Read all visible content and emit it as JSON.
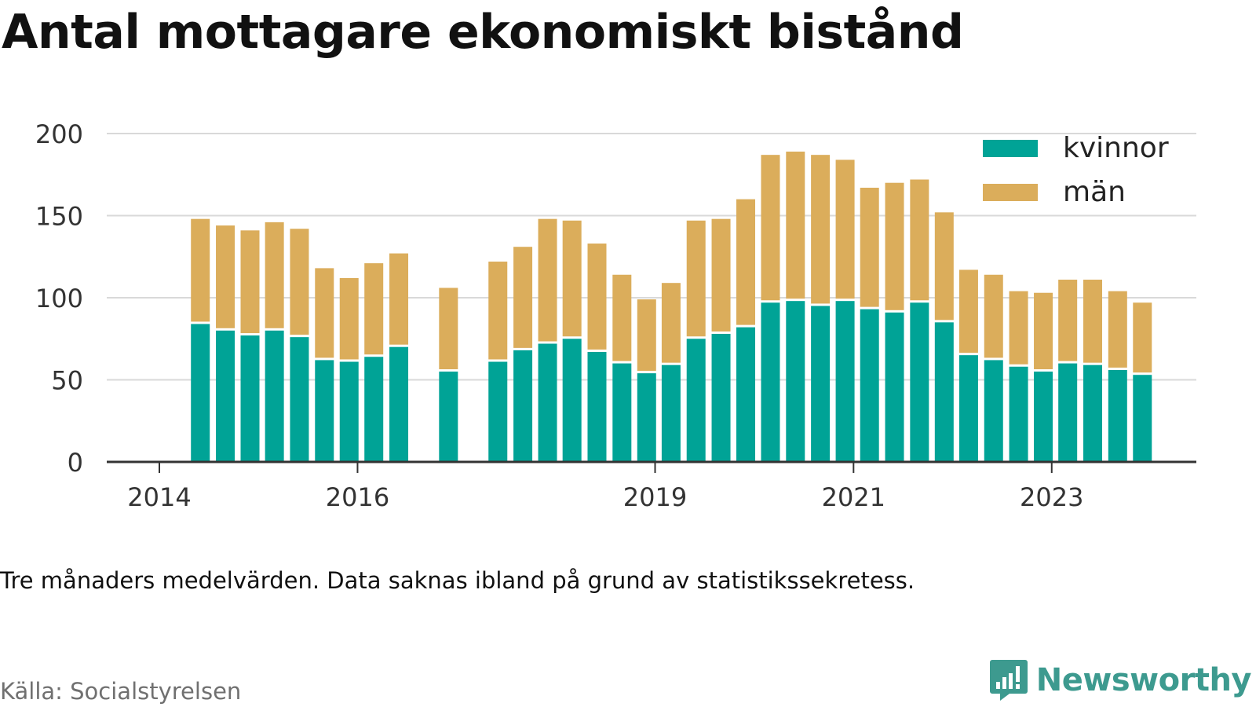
{
  "header": {
    "title": "Antal mottagare ekonomiskt bistånd"
  },
  "footer": {
    "note": "Tre månaders medelvärden. Data saknas ibland på grund av statistikssekretess.",
    "source": "Källa: Socialstyrelsen",
    "brand": "Newsworthy",
    "brand_icon": "newsworthy-chart-icon"
  },
  "colors": {
    "kvinnor": "#00a396",
    "man": "#dbad5b",
    "grid": "#d9d9d9",
    "axis": "#333333"
  },
  "chart_data": {
    "type": "bar",
    "stacked": true,
    "title": "Antal mottagare ekonomiskt bistånd",
    "xlabel": "",
    "ylabel": "",
    "ylim": [
      0,
      200
    ],
    "yticks": [
      0,
      50,
      100,
      150,
      200
    ],
    "xticks": [
      "2014",
      "2016",
      "2019",
      "2021",
      "2023"
    ],
    "grid": true,
    "legend_position": "top-right",
    "x": [
      "2014-06",
      "2014-09",
      "2014-12",
      "2015-03",
      "2015-06",
      "2015-09",
      "2015-12",
      "2016-03",
      "2016-06",
      "2016-12",
      "2017-06",
      "2017-09",
      "2017-12",
      "2018-03",
      "2018-06",
      "2018-09",
      "2018-12",
      "2019-03",
      "2019-06",
      "2019-09",
      "2019-12",
      "2020-03",
      "2020-06",
      "2020-09",
      "2020-12",
      "2021-03",
      "2021-06",
      "2021-09",
      "2021-12",
      "2022-03",
      "2022-06",
      "2022-09",
      "2022-12",
      "2023-03",
      "2023-06",
      "2023-09",
      "2023-12"
    ],
    "series": [
      {
        "name": "kvinnor",
        "values": [
          84,
          80,
          77,
          80,
          76,
          62,
          61,
          64,
          70,
          55,
          61,
          68,
          72,
          75,
          67,
          60,
          54,
          59,
          75,
          78,
          82,
          97,
          98,
          95,
          98,
          93,
          91,
          97,
          85,
          65,
          62,
          58,
          55,
          60,
          59,
          56,
          53
        ]
      },
      {
        "name": "män",
        "values": [
          64,
          64,
          64,
          66,
          66,
          56,
          51,
          57,
          57,
          51,
          61,
          63,
          76,
          72,
          66,
          54,
          45,
          50,
          72,
          70,
          78,
          90,
          91,
          92,
          86,
          74,
          79,
          75,
          67,
          52,
          52,
          46,
          48,
          51,
          52,
          48,
          44
        ]
      }
    ]
  }
}
